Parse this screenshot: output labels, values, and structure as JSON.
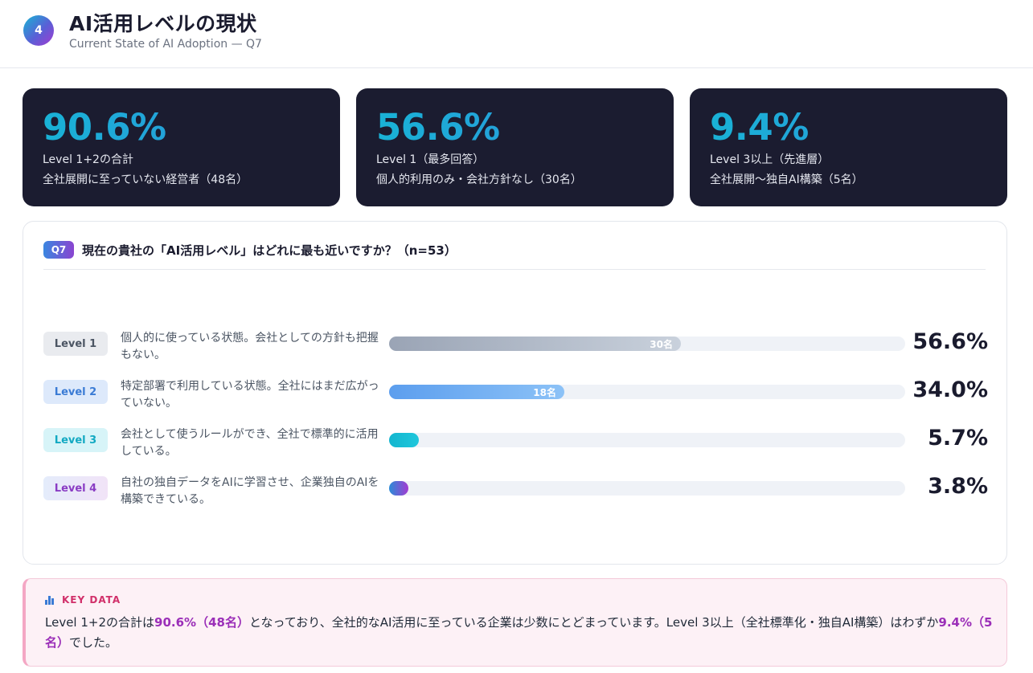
{
  "header": {
    "section_number": "4",
    "title": "AI活用レベルの現状",
    "subtitle": "Current State of AI Adoption — Q7"
  },
  "stats": [
    {
      "value": "90.6%",
      "line1": "Level 1+2の合計",
      "line2": "全社展開に至っていない経営者（48名）"
    },
    {
      "value": "56.6%",
      "line1": "Level 1（最多回答）",
      "line2": "個人的利用のみ・会社方針なし（30名）"
    },
    {
      "value": "9.4%",
      "line1": "Level 3以上（先進層）",
      "line2": "全社展開〜独自AI構築（5名）"
    }
  ],
  "question": {
    "badge": "Q7",
    "text": "現在の貴社の「AI活用レベル」はどれに最も近いですか？（n=53）"
  },
  "chart_data": {
    "type": "bar",
    "orientation": "horizontal",
    "n": 53,
    "categories": [
      "Level 1",
      "Level 2",
      "Level 3",
      "Level 4"
    ],
    "descriptions": [
      "個人的に使っている状態。会社としての方針も把握もない。",
      "特定部署で利用している状態。全社にはまだ広がっていない。",
      "会社として使うルールができ、全社で標準的に活用している。",
      "自社の独自データをAIに学習させ、企業独自のAIを構築できている。"
    ],
    "values": [
      56.6,
      34.0,
      5.7,
      3.8
    ],
    "value_labels": [
      "56.6%",
      "34.0%",
      "5.7%",
      "3.8%"
    ],
    "bar_labels": [
      "30名",
      "18名",
      "",
      ""
    ],
    "xlim": [
      0,
      100
    ],
    "colors": {
      "level1": "#a8b2c2",
      "level2": "#5aa1ef",
      "level3": "#17bfd4",
      "level4": "#7b4fd6"
    }
  },
  "key_data": {
    "label": "KEY DATA",
    "icon": "bar-chart-icon",
    "text_parts": [
      {
        "t": "Level 1+2の合計は",
        "hl": false
      },
      {
        "t": "90.6%（48名）",
        "hl": true
      },
      {
        "t": "となっており、全社的なAI活用に至っている企業は少数にとどまっています。Level 3以上（全社標準化・独自AI構築）はわずか",
        "hl": false
      },
      {
        "t": "9.4%（5名）",
        "hl": true
      },
      {
        "t": "でした。",
        "hl": false
      }
    ]
  }
}
